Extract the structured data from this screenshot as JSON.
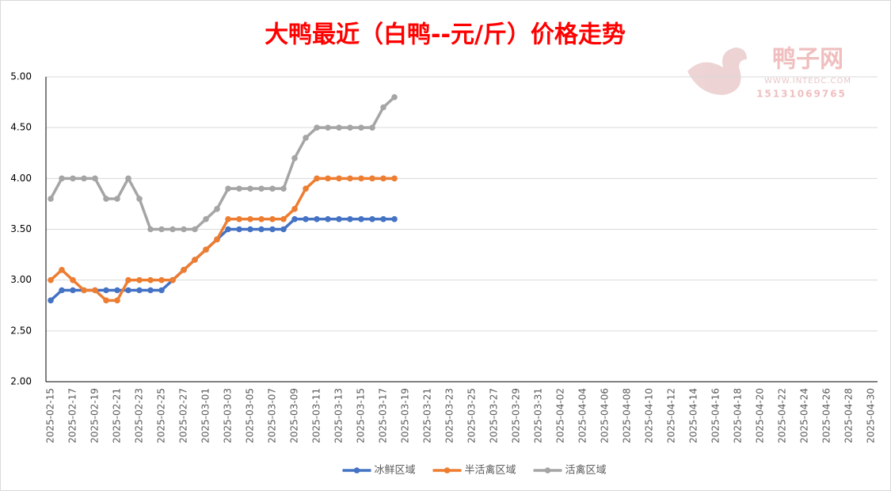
{
  "chart_data": {
    "type": "line",
    "title": "大鸭最近（白鸭--元/斤）价格走势",
    "watermark": {
      "name": "鸭子网",
      "url": "WWW.INTEDC.COM",
      "phone": "15131069765"
    },
    "categories": [
      "2025-02-15",
      null,
      "2025-02-17",
      null,
      "2025-02-19",
      null,
      "2025-02-21",
      null,
      "2025-02-23",
      null,
      "2025-02-25",
      null,
      "2025-02-27",
      null,
      "2025-03-01",
      null,
      "2025-03-03",
      null,
      "2025-03-05",
      null,
      "2025-03-07",
      null,
      "2025-03-09",
      null,
      "2025-03-11",
      null,
      "2025-03-13",
      null,
      "2025-03-15",
      null,
      "2025-03-17",
      null,
      "2025-03-19",
      null,
      "2025-03-21",
      null,
      "2025-03-23",
      null,
      "2025-03-25",
      null,
      "2025-03-27",
      null,
      "2025-03-29",
      null,
      "2025-03-31",
      null,
      "2025-04-02",
      null,
      "2025-04-04",
      null,
      "2025-04-06",
      null,
      "2025-04-08",
      null,
      "2025-04-10",
      null,
      "2025-04-12",
      null,
      "2025-04-14",
      null,
      "2025-04-16",
      null,
      "2025-04-18",
      null,
      "2025-04-20",
      null,
      "2025-04-22",
      null,
      "2025-04-24",
      null,
      "2025-04-26",
      null,
      "2025-04-28",
      null,
      "2025-04-30"
    ],
    "series": [
      {
        "name": "冰鲜区域",
        "color": "#4472c4",
        "values": [
          2.8,
          2.9,
          2.9,
          2.9,
          2.9,
          2.9,
          2.9,
          2.9,
          2.9,
          2.9,
          2.9,
          3.0,
          3.1,
          3.2,
          3.3,
          3.4,
          3.5,
          3.5,
          3.5,
          3.5,
          3.5,
          3.5,
          3.6,
          3.6,
          3.6,
          3.6,
          3.6,
          3.6,
          3.6,
          3.6,
          3.6,
          3.6,
          null,
          null,
          null,
          null,
          null,
          null,
          null,
          null,
          null,
          null,
          null,
          null,
          null,
          null,
          null,
          null,
          null,
          null,
          null,
          null,
          null,
          null,
          null,
          null,
          null,
          null,
          null,
          null,
          null,
          null,
          null,
          null,
          null,
          null,
          null,
          null,
          null,
          null,
          null,
          null,
          null,
          null,
          null
        ]
      },
      {
        "name": "半活禽区域",
        "color": "#ed7d31",
        "values": [
          3.0,
          3.1,
          3.0,
          2.9,
          2.9,
          2.8,
          2.8,
          3.0,
          3.0,
          3.0,
          3.0,
          3.0,
          3.1,
          3.2,
          3.3,
          3.4,
          3.6,
          3.6,
          3.6,
          3.6,
          3.6,
          3.6,
          3.7,
          3.9,
          4.0,
          4.0,
          4.0,
          4.0,
          4.0,
          4.0,
          4.0,
          4.0,
          null,
          null,
          null,
          null,
          null,
          null,
          null,
          null,
          null,
          null,
          null,
          null,
          null,
          null,
          null,
          null,
          null,
          null,
          null,
          null,
          null,
          null,
          null,
          null,
          null,
          null,
          null,
          null,
          null,
          null,
          null,
          null,
          null,
          null,
          null,
          null,
          null,
          null,
          null,
          null,
          null,
          null,
          null
        ]
      },
      {
        "name": "活禽区域",
        "color": "#a5a5a5",
        "values": [
          3.8,
          4.0,
          4.0,
          4.0,
          4.0,
          3.8,
          3.8,
          4.0,
          3.8,
          3.5,
          3.5,
          3.5,
          3.5,
          3.5,
          3.6,
          3.7,
          3.9,
          3.9,
          3.9,
          3.9,
          3.9,
          3.9,
          4.2,
          4.4,
          4.5,
          4.5,
          4.5,
          4.5,
          4.5,
          4.5,
          4.7,
          4.8,
          null,
          null,
          null,
          null,
          null,
          null,
          null,
          null,
          null,
          null,
          null,
          null,
          null,
          null,
          null,
          null,
          null,
          null,
          null,
          null,
          null,
          null,
          null,
          null,
          null,
          null,
          null,
          null,
          null,
          null,
          null,
          null,
          null,
          null,
          null,
          null,
          null,
          null,
          null,
          null,
          null,
          null,
          null
        ]
      }
    ],
    "ylim": [
      2,
      5
    ],
    "yticks": [
      {
        "value": 2,
        "label": "2.00"
      },
      {
        "value": 2.5,
        "label": "2.50"
      },
      {
        "value": 3,
        "label": "3.00"
      },
      {
        "value": 3.5,
        "label": "3.50"
      },
      {
        "value": 4,
        "label": "4.00"
      },
      {
        "value": 4.5,
        "label": "4.50"
      },
      {
        "value": 5,
        "label": "5.00"
      }
    ],
    "grid": true,
    "legend": "bottom"
  }
}
